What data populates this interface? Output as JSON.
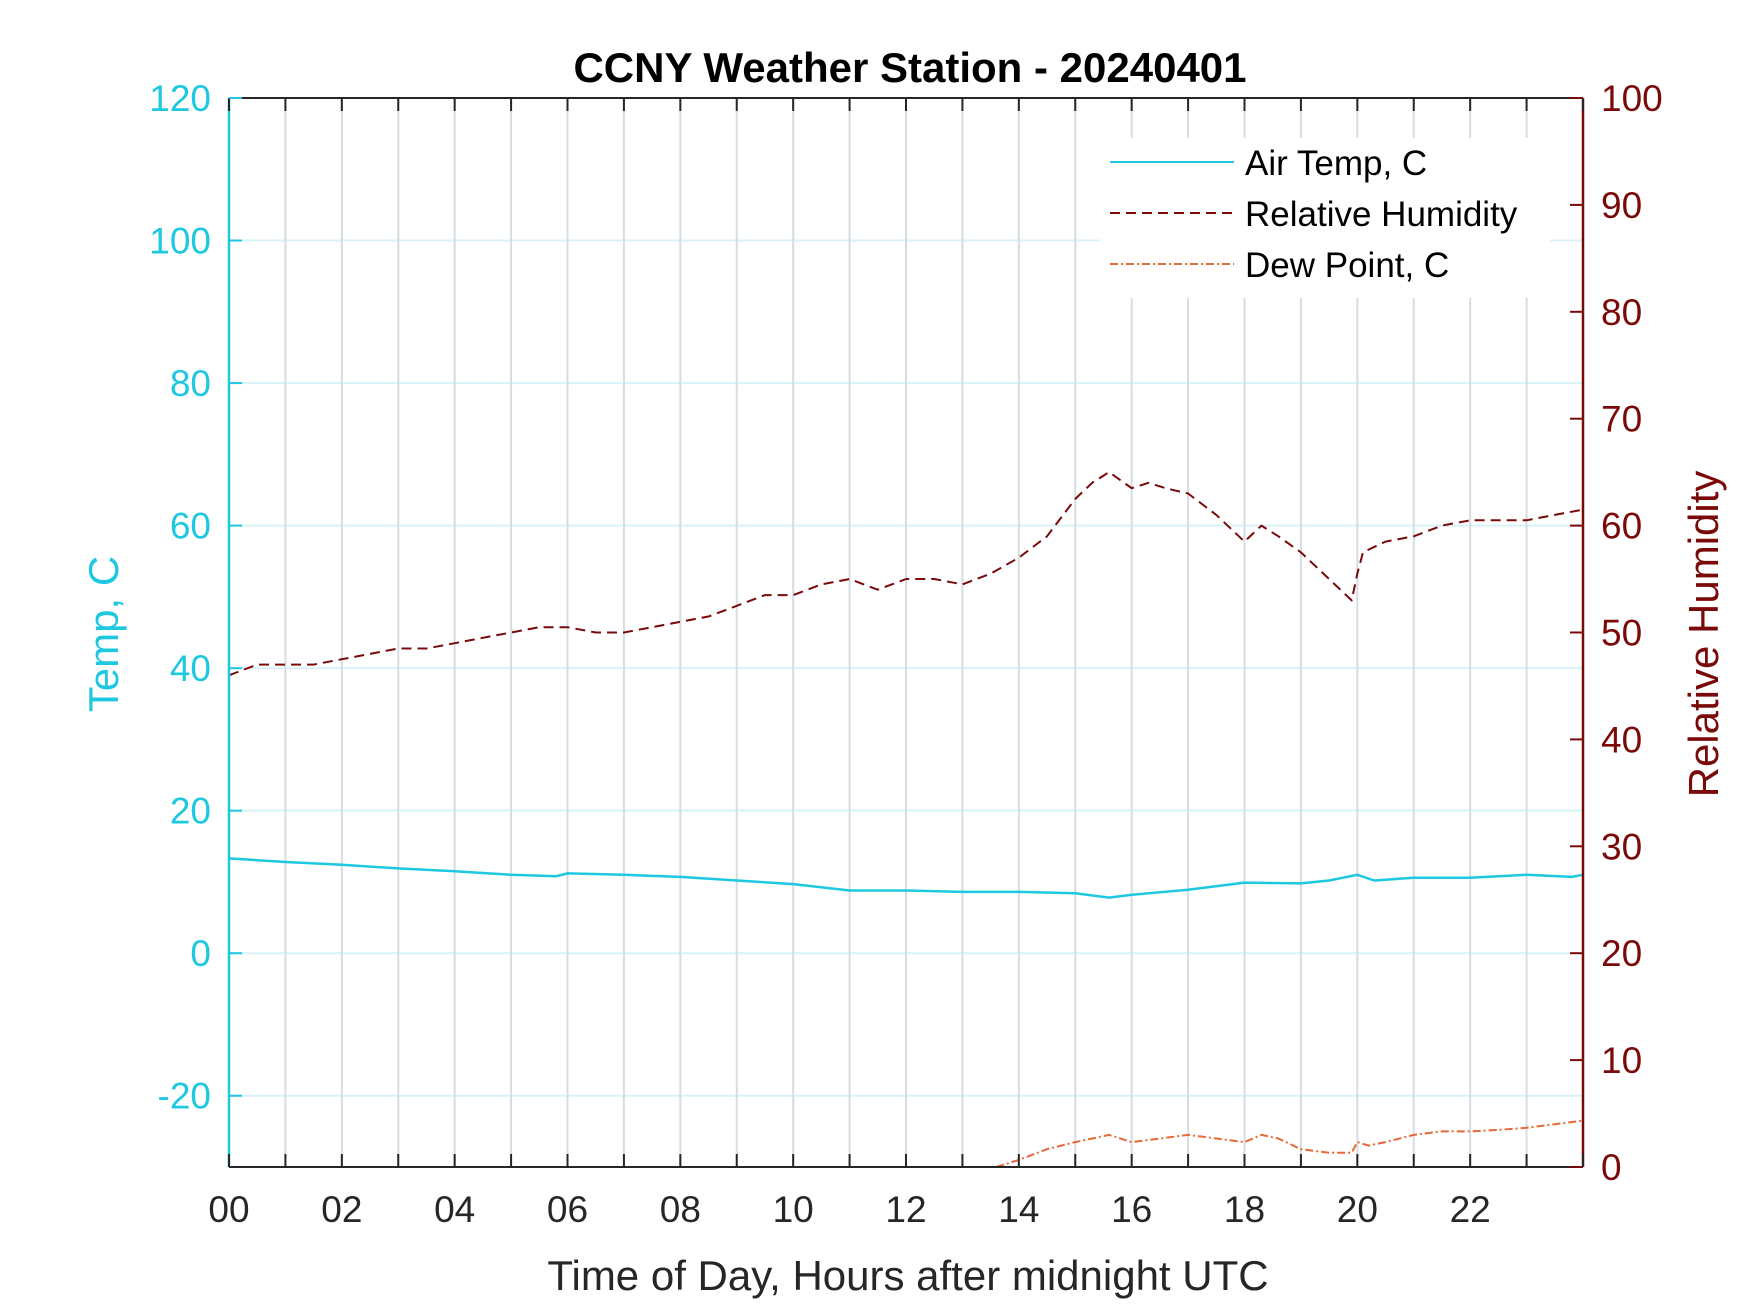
{
  "chart_data": {
    "type": "line",
    "title": "CCNY Weather Station - 20240401",
    "xlabel": "Time of Day, Hours after midnight UTC",
    "ylabel_left": "Temp, C",
    "ylabel_right": "Relative Humidity",
    "xlim": [
      0,
      24
    ],
    "ylim_left": [
      -30,
      120
    ],
    "ylim_right": [
      0,
      100
    ],
    "x_ticks": [
      0,
      2,
      4,
      6,
      8,
      10,
      12,
      14,
      16,
      18,
      20,
      22
    ],
    "x_tick_labels": [
      "00",
      "02",
      "04",
      "06",
      "08",
      "10",
      "12",
      "14",
      "16",
      "18",
      "20",
      "22"
    ],
    "y_left_ticks": [
      -20,
      0,
      20,
      40,
      60,
      80,
      100,
      120
    ],
    "y_left_tick_labels": [
      "-20",
      "0",
      "20",
      "40",
      "60",
      "80",
      "100",
      "120"
    ],
    "y_right_ticks": [
      0,
      10,
      20,
      30,
      40,
      50,
      60,
      70,
      80,
      90,
      100
    ],
    "y_right_tick_labels": [
      "0",
      "10",
      "20",
      "30",
      "40",
      "50",
      "60",
      "70",
      "80",
      "90",
      "100"
    ],
    "grid": true,
    "legend_position": "top-right",
    "colors": {
      "air_temp": "#1ec8e0",
      "humidity": "#7a0a0a",
      "dew_point": "#e8683a",
      "left_axis": "#1ec8e0",
      "right_axis": "#7a0a0a",
      "grid": "#d5dde3",
      "hgrid": "#d8f2f8"
    },
    "series": [
      {
        "name": "Air Temp, C",
        "axis": "left",
        "style": "solid",
        "x": [
          0,
          1,
          2,
          3,
          4,
          5,
          5.8,
          6,
          7,
          8,
          9,
          10,
          11,
          12,
          13,
          14,
          15,
          15.6,
          16,
          17,
          18,
          19,
          19.5,
          20,
          20.3,
          21,
          22,
          23,
          23.8,
          24
        ],
        "values": [
          13.3,
          12.8,
          12.4,
          11.9,
          11.5,
          11.0,
          10.8,
          11.2,
          11.0,
          10.7,
          10.2,
          9.7,
          8.8,
          8.8,
          8.6,
          8.6,
          8.4,
          7.8,
          8.2,
          8.9,
          9.9,
          9.8,
          10.2,
          11.0,
          10.2,
          10.6,
          10.6,
          11.0,
          10.7,
          11.0
        ]
      },
      {
        "name": "Relative Humidity",
        "axis": "right",
        "style": "dashed",
        "x": [
          0,
          0.5,
          1,
          1.5,
          2,
          2.5,
          3,
          3.5,
          4,
          4.5,
          5,
          5.5,
          6,
          6.5,
          7,
          7.5,
          8,
          8.5,
          9,
          9.5,
          10,
          10.5,
          11,
          11.5,
          12,
          12.5,
          13,
          13.5,
          14,
          14.5,
          15,
          15.3,
          15.6,
          16,
          16.3,
          16.6,
          17,
          17.5,
          18,
          18.3,
          18.6,
          19,
          19.5,
          19.9,
          20,
          20.1,
          20.5,
          21,
          21.5,
          22,
          22.5,
          23,
          23.5,
          24
        ],
        "values": [
          46,
          47,
          47,
          47,
          47.5,
          48,
          48.5,
          48.5,
          49,
          49.5,
          50,
          50.5,
          50.5,
          50,
          50,
          50.5,
          51,
          51.5,
          52.5,
          53.5,
          53.5,
          54.5,
          55,
          54,
          55,
          55,
          54.5,
          55.5,
          57,
          59,
          62.5,
          64,
          65,
          63.5,
          64,
          63.5,
          63,
          61,
          58.5,
          60,
          59,
          57.5,
          55,
          53,
          55.5,
          57.5,
          58.5,
          59,
          60,
          60.5,
          60.5,
          60.5,
          61,
          61.5
        ]
      },
      {
        "name": "Dew Point, C",
        "axis": "left",
        "style": "dash-dot",
        "x": [
          13.6,
          14,
          14.5,
          15,
          15.3,
          15.6,
          16,
          16.5,
          17,
          17.5,
          18,
          18.3,
          18.6,
          19,
          19.5,
          19.9,
          20,
          20.2,
          20.5,
          21,
          21.5,
          22,
          22.5,
          23,
          23.5,
          24
        ],
        "values": [
          -30,
          -29,
          -27.5,
          -26.5,
          -26,
          -25.5,
          -26.5,
          -26,
          -25.5,
          -26,
          -26.5,
          -25.5,
          -26,
          -27.5,
          -28,
          -28,
          -26.5,
          -27,
          -26.5,
          -25.5,
          -25,
          -25,
          -24.8,
          -24.5,
          -24,
          -23.5
        ]
      }
    ]
  }
}
